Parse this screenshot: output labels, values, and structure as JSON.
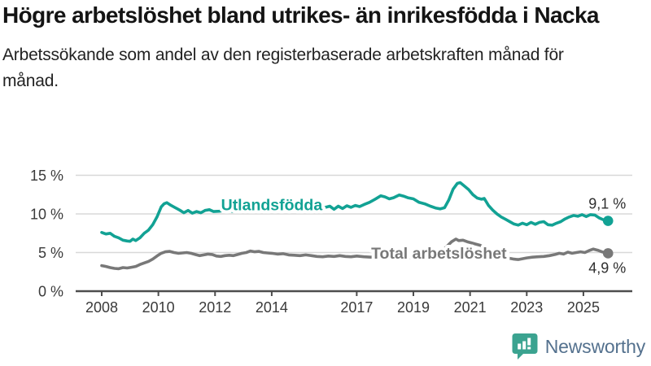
{
  "header": {
    "title": "Högre arbetslöshet bland utrikes- än inrikesfödda i Nacka",
    "subtitle": "Arbetssökande som andel av den registerbaserade arbetskraften månad för månad."
  },
  "footer": {
    "brand": "Newsworthy"
  },
  "colors": {
    "teal": "#12a294",
    "gray": "#787878",
    "axis": "#4d4d4d",
    "grid": "#d8d8d8",
    "tick_text": "#3a3a3a",
    "value_text": "#2e2e2e",
    "logo_teal": "#3ba390",
    "logo_text": "#54718e"
  },
  "chart_data": {
    "type": "line",
    "title": "Högre arbetslöshet bland utrikes- än inrikesfödda i Nacka",
    "subtitle": "Arbetssökande som andel av den registerbaserade arbetskraften månad för månad.",
    "grid": true,
    "x_range": [
      2008,
      2025.87
    ],
    "y_range": [
      0,
      15
    ],
    "y_ticks": [
      {
        "value": 0,
        "label": "0 %"
      },
      {
        "value": 5,
        "label": "5 %"
      },
      {
        "value": 10,
        "label": "10 %"
      },
      {
        "value": 15,
        "label": "15 %"
      }
    ],
    "x_ticks": [
      {
        "value": 2008,
        "label": "2008"
      },
      {
        "value": 2010,
        "label": "2010"
      },
      {
        "value": 2012,
        "label": "2012"
      },
      {
        "value": 2014,
        "label": "2014"
      },
      {
        "value": 2017,
        "label": "2017"
      },
      {
        "value": 2019,
        "label": "2019"
      },
      {
        "value": 2021,
        "label": "2021"
      },
      {
        "value": 2023,
        "label": "2023"
      },
      {
        "value": 2025,
        "label": "2025"
      }
    ],
    "series": [
      {
        "id": "utlandsfodda",
        "name": "Utlandsfödda",
        "color": "#12a294",
        "label_x": 2014.0,
        "label_y": 10.5,
        "end_label": "9,1 %",
        "end_value": 9.1,
        "end_label_dy": -15,
        "points": [
          [
            2008.0,
            7.6
          ],
          [
            2008.15,
            7.4
          ],
          [
            2008.3,
            7.5
          ],
          [
            2008.45,
            7.1
          ],
          [
            2008.6,
            6.9
          ],
          [
            2008.75,
            6.6
          ],
          [
            2008.9,
            6.5
          ],
          [
            2009.0,
            6.45
          ],
          [
            2009.1,
            6.75
          ],
          [
            2009.2,
            6.55
          ],
          [
            2009.35,
            6.9
          ],
          [
            2009.5,
            7.5
          ],
          [
            2009.65,
            7.9
          ],
          [
            2009.8,
            8.6
          ],
          [
            2009.95,
            9.6
          ],
          [
            2010.1,
            10.9
          ],
          [
            2010.2,
            11.3
          ],
          [
            2010.3,
            11.45
          ],
          [
            2010.45,
            11.1
          ],
          [
            2010.6,
            10.8
          ],
          [
            2010.75,
            10.5
          ],
          [
            2010.9,
            10.15
          ],
          [
            2011.05,
            10.45
          ],
          [
            2011.2,
            10.1
          ],
          [
            2011.35,
            10.3
          ],
          [
            2011.5,
            10.15
          ],
          [
            2011.65,
            10.45
          ],
          [
            2011.8,
            10.55
          ],
          [
            2011.95,
            10.3
          ],
          [
            2012.15,
            10.35
          ],
          [
            2012.4,
            10.5
          ],
          [
            2012.65,
            10.3
          ],
          [
            2012.9,
            10.5
          ],
          [
            2013.15,
            10.55
          ],
          [
            2013.4,
            10.45
          ],
          [
            2013.65,
            10.6
          ],
          [
            2013.9,
            10.5
          ],
          [
            2014.15,
            10.65
          ],
          [
            2014.4,
            10.55
          ],
          [
            2014.65,
            10.7
          ],
          [
            2014.9,
            10.6
          ],
          [
            2015.15,
            10.75
          ],
          [
            2015.4,
            10.65
          ],
          [
            2015.65,
            10.8
          ],
          [
            2015.9,
            10.85
          ],
          [
            2016.05,
            11.0
          ],
          [
            2016.2,
            10.6
          ],
          [
            2016.35,
            11.0
          ],
          [
            2016.5,
            10.7
          ],
          [
            2016.65,
            11.05
          ],
          [
            2016.8,
            10.85
          ],
          [
            2016.95,
            11.1
          ],
          [
            2017.1,
            10.95
          ],
          [
            2017.25,
            11.2
          ],
          [
            2017.45,
            11.5
          ],
          [
            2017.65,
            11.9
          ],
          [
            2017.85,
            12.35
          ],
          [
            2018.0,
            12.2
          ],
          [
            2018.15,
            11.95
          ],
          [
            2018.3,
            12.1
          ],
          [
            2018.5,
            12.45
          ],
          [
            2018.65,
            12.3
          ],
          [
            2018.8,
            12.1
          ],
          [
            2019.0,
            11.95
          ],
          [
            2019.2,
            11.5
          ],
          [
            2019.4,
            11.3
          ],
          [
            2019.6,
            11.0
          ],
          [
            2019.8,
            10.75
          ],
          [
            2019.95,
            10.65
          ],
          [
            2020.1,
            10.8
          ],
          [
            2020.25,
            11.8
          ],
          [
            2020.4,
            13.2
          ],
          [
            2020.55,
            13.95
          ],
          [
            2020.65,
            14.05
          ],
          [
            2020.8,
            13.6
          ],
          [
            2020.95,
            13.15
          ],
          [
            2021.1,
            12.5
          ],
          [
            2021.25,
            12.05
          ],
          [
            2021.4,
            11.9
          ],
          [
            2021.5,
            12.0
          ],
          [
            2021.65,
            11.1
          ],
          [
            2021.8,
            10.5
          ],
          [
            2021.95,
            10.0
          ],
          [
            2022.1,
            9.6
          ],
          [
            2022.25,
            9.3
          ],
          [
            2022.4,
            9.0
          ],
          [
            2022.55,
            8.7
          ],
          [
            2022.7,
            8.55
          ],
          [
            2022.85,
            8.8
          ],
          [
            2023.0,
            8.6
          ],
          [
            2023.15,
            8.9
          ],
          [
            2023.3,
            8.65
          ],
          [
            2023.45,
            8.9
          ],
          [
            2023.6,
            9.0
          ],
          [
            2023.75,
            8.6
          ],
          [
            2023.9,
            8.55
          ],
          [
            2024.05,
            8.8
          ],
          [
            2024.2,
            9.0
          ],
          [
            2024.35,
            9.35
          ],
          [
            2024.5,
            9.6
          ],
          [
            2024.65,
            9.8
          ],
          [
            2024.8,
            9.7
          ],
          [
            2024.95,
            9.9
          ],
          [
            2025.1,
            9.65
          ],
          [
            2025.25,
            9.9
          ],
          [
            2025.4,
            9.85
          ],
          [
            2025.55,
            9.5
          ],
          [
            2025.7,
            9.25
          ],
          [
            2025.87,
            9.1
          ]
        ]
      },
      {
        "id": "total",
        "name": "Total arbetslöshet",
        "color": "#787878",
        "label_x": 2019.9,
        "label_y": 4.2,
        "end_label": "4,9 %",
        "end_value": 4.9,
        "end_label_dy": 24,
        "points": [
          [
            2008.0,
            3.3
          ],
          [
            2008.15,
            3.2
          ],
          [
            2008.3,
            3.05
          ],
          [
            2008.45,
            2.95
          ],
          [
            2008.6,
            2.9
          ],
          [
            2008.75,
            3.05
          ],
          [
            2008.9,
            3.0
          ],
          [
            2009.05,
            3.1
          ],
          [
            2009.2,
            3.2
          ],
          [
            2009.35,
            3.45
          ],
          [
            2009.5,
            3.65
          ],
          [
            2009.65,
            3.85
          ],
          [
            2009.8,
            4.15
          ],
          [
            2009.95,
            4.55
          ],
          [
            2010.1,
            4.9
          ],
          [
            2010.25,
            5.1
          ],
          [
            2010.4,
            5.15
          ],
          [
            2010.55,
            5.0
          ],
          [
            2010.7,
            4.9
          ],
          [
            2010.85,
            4.95
          ],
          [
            2011.0,
            5.0
          ],
          [
            2011.15,
            4.9
          ],
          [
            2011.3,
            4.75
          ],
          [
            2011.45,
            4.6
          ],
          [
            2011.6,
            4.7
          ],
          [
            2011.75,
            4.8
          ],
          [
            2011.9,
            4.75
          ],
          [
            2012.05,
            4.55
          ],
          [
            2012.2,
            4.5
          ],
          [
            2012.35,
            4.6
          ],
          [
            2012.5,
            4.65
          ],
          [
            2012.65,
            4.6
          ],
          [
            2012.8,
            4.75
          ],
          [
            2012.95,
            4.9
          ],
          [
            2013.1,
            5.0
          ],
          [
            2013.25,
            5.2
          ],
          [
            2013.4,
            5.1
          ],
          [
            2013.55,
            5.15
          ],
          [
            2013.7,
            5.0
          ],
          [
            2013.85,
            4.95
          ],
          [
            2014.0,
            4.9
          ],
          [
            2014.2,
            4.8
          ],
          [
            2014.4,
            4.85
          ],
          [
            2014.6,
            4.7
          ],
          [
            2014.8,
            4.65
          ],
          [
            2015.0,
            4.6
          ],
          [
            2015.2,
            4.7
          ],
          [
            2015.4,
            4.6
          ],
          [
            2015.6,
            4.5
          ],
          [
            2015.8,
            4.45
          ],
          [
            2016.0,
            4.55
          ],
          [
            2016.2,
            4.5
          ],
          [
            2016.4,
            4.6
          ],
          [
            2016.6,
            4.5
          ],
          [
            2016.8,
            4.45
          ],
          [
            2017.0,
            4.55
          ],
          [
            2017.25,
            4.45
          ],
          [
            2017.5,
            4.4
          ],
          [
            2017.75,
            4.5
          ],
          [
            2018.0,
            4.4
          ],
          [
            2018.25,
            4.35
          ],
          [
            2018.5,
            4.45
          ],
          [
            2018.75,
            4.3
          ],
          [
            2019.0,
            4.35
          ],
          [
            2019.25,
            4.3
          ],
          [
            2019.5,
            4.35
          ],
          [
            2019.75,
            4.5
          ],
          [
            2019.95,
            4.9
          ],
          [
            2020.15,
            5.7
          ],
          [
            2020.35,
            6.4
          ],
          [
            2020.5,
            6.75
          ],
          [
            2020.6,
            6.55
          ],
          [
            2020.75,
            6.6
          ],
          [
            2020.9,
            6.4
          ],
          [
            2021.05,
            6.25
          ],
          [
            2021.2,
            6.1
          ],
          [
            2021.35,
            5.95
          ],
          [
            2021.5,
            5.7
          ],
          [
            2021.65,
            5.45
          ],
          [
            2021.8,
            5.2
          ],
          [
            2021.95,
            4.95
          ],
          [
            2022.1,
            4.6
          ],
          [
            2022.25,
            4.4
          ],
          [
            2022.4,
            4.25
          ],
          [
            2022.55,
            4.15
          ],
          [
            2022.7,
            4.1
          ],
          [
            2022.85,
            4.2
          ],
          [
            2023.0,
            4.3
          ],
          [
            2023.2,
            4.4
          ],
          [
            2023.4,
            4.45
          ],
          [
            2023.6,
            4.5
          ],
          [
            2023.8,
            4.6
          ],
          [
            2024.0,
            4.75
          ],
          [
            2024.15,
            4.9
          ],
          [
            2024.3,
            4.8
          ],
          [
            2024.45,
            5.05
          ],
          [
            2024.6,
            4.9
          ],
          [
            2024.75,
            5.0
          ],
          [
            2024.9,
            5.1
          ],
          [
            2025.05,
            5.0
          ],
          [
            2025.2,
            5.25
          ],
          [
            2025.35,
            5.45
          ],
          [
            2025.5,
            5.3
          ],
          [
            2025.65,
            5.1
          ],
          [
            2025.87,
            4.9
          ]
        ]
      }
    ]
  }
}
